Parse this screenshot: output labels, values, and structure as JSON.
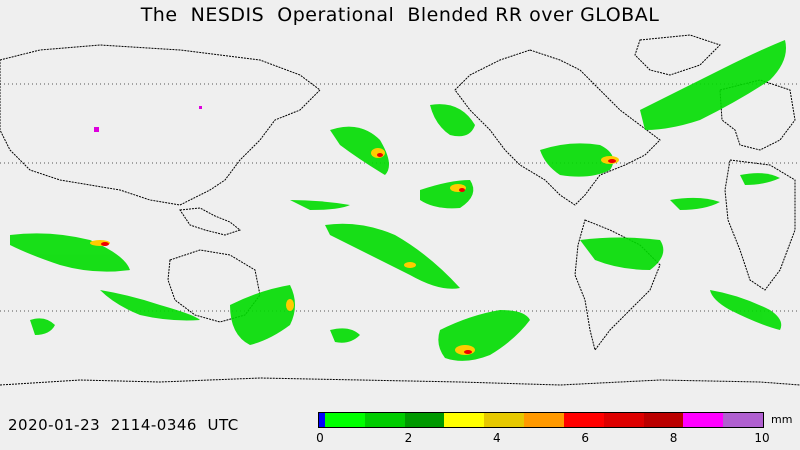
{
  "title": "The  NESDIS  Operational  Blended RR over GLOBAL",
  "timestamp": "2020-01-23  2114-0346  UTC",
  "legend": {
    "unit": "mm",
    "tick_labels": [
      "0",
      "2",
      "4",
      "6",
      "8",
      "10"
    ],
    "colors": [
      "#0000ff",
      "#00ff00",
      "#00cc00",
      "#009900",
      "#ffff00",
      "#e6c800",
      "#ff9900",
      "#ff0000",
      "#dd0000",
      "#bb0000",
      "#ff00ff",
      "#b060d0"
    ]
  }
}
